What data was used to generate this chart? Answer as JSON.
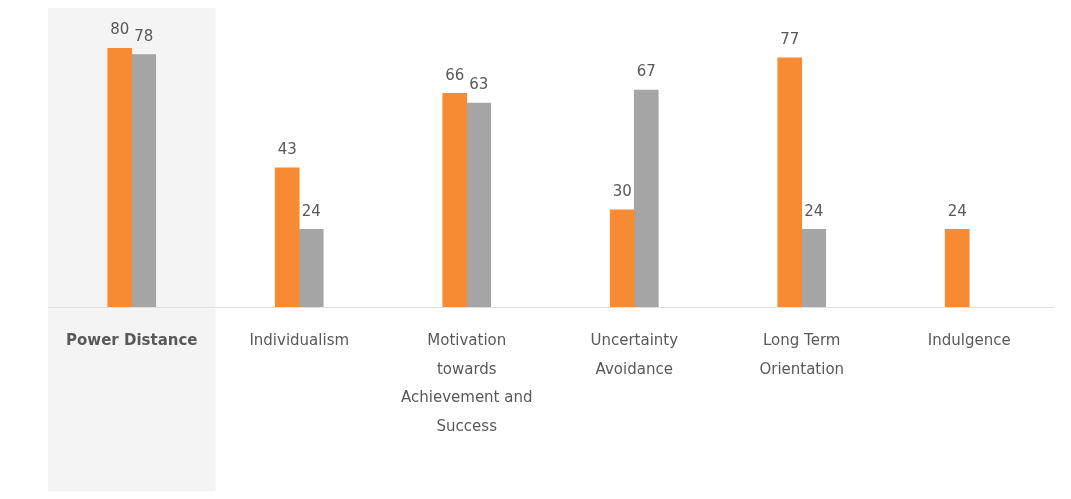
{
  "chart_data": {
    "type": "bar",
    "categories": [
      "Power Distance",
      "Individualism",
      "Motivation towards Achievement and Success",
      "Uncertainty Avoidance",
      "Long Term Orientation",
      "Indulgence"
    ],
    "series": [
      {
        "color": "#f68b33",
        "values": [
          80,
          43,
          66,
          30,
          77,
          24
        ]
      },
      {
        "color": "#a5a5a5",
        "values": [
          78,
          24,
          63,
          67,
          24,
          null
        ]
      }
    ],
    "data_labels": true,
    "grid": false,
    "legend": false,
    "bands": [
      {
        "axis": "x",
        "from": "Power Distance",
        "to": "Power Distance",
        "color": "#f4f4f4"
      }
    ]
  }
}
